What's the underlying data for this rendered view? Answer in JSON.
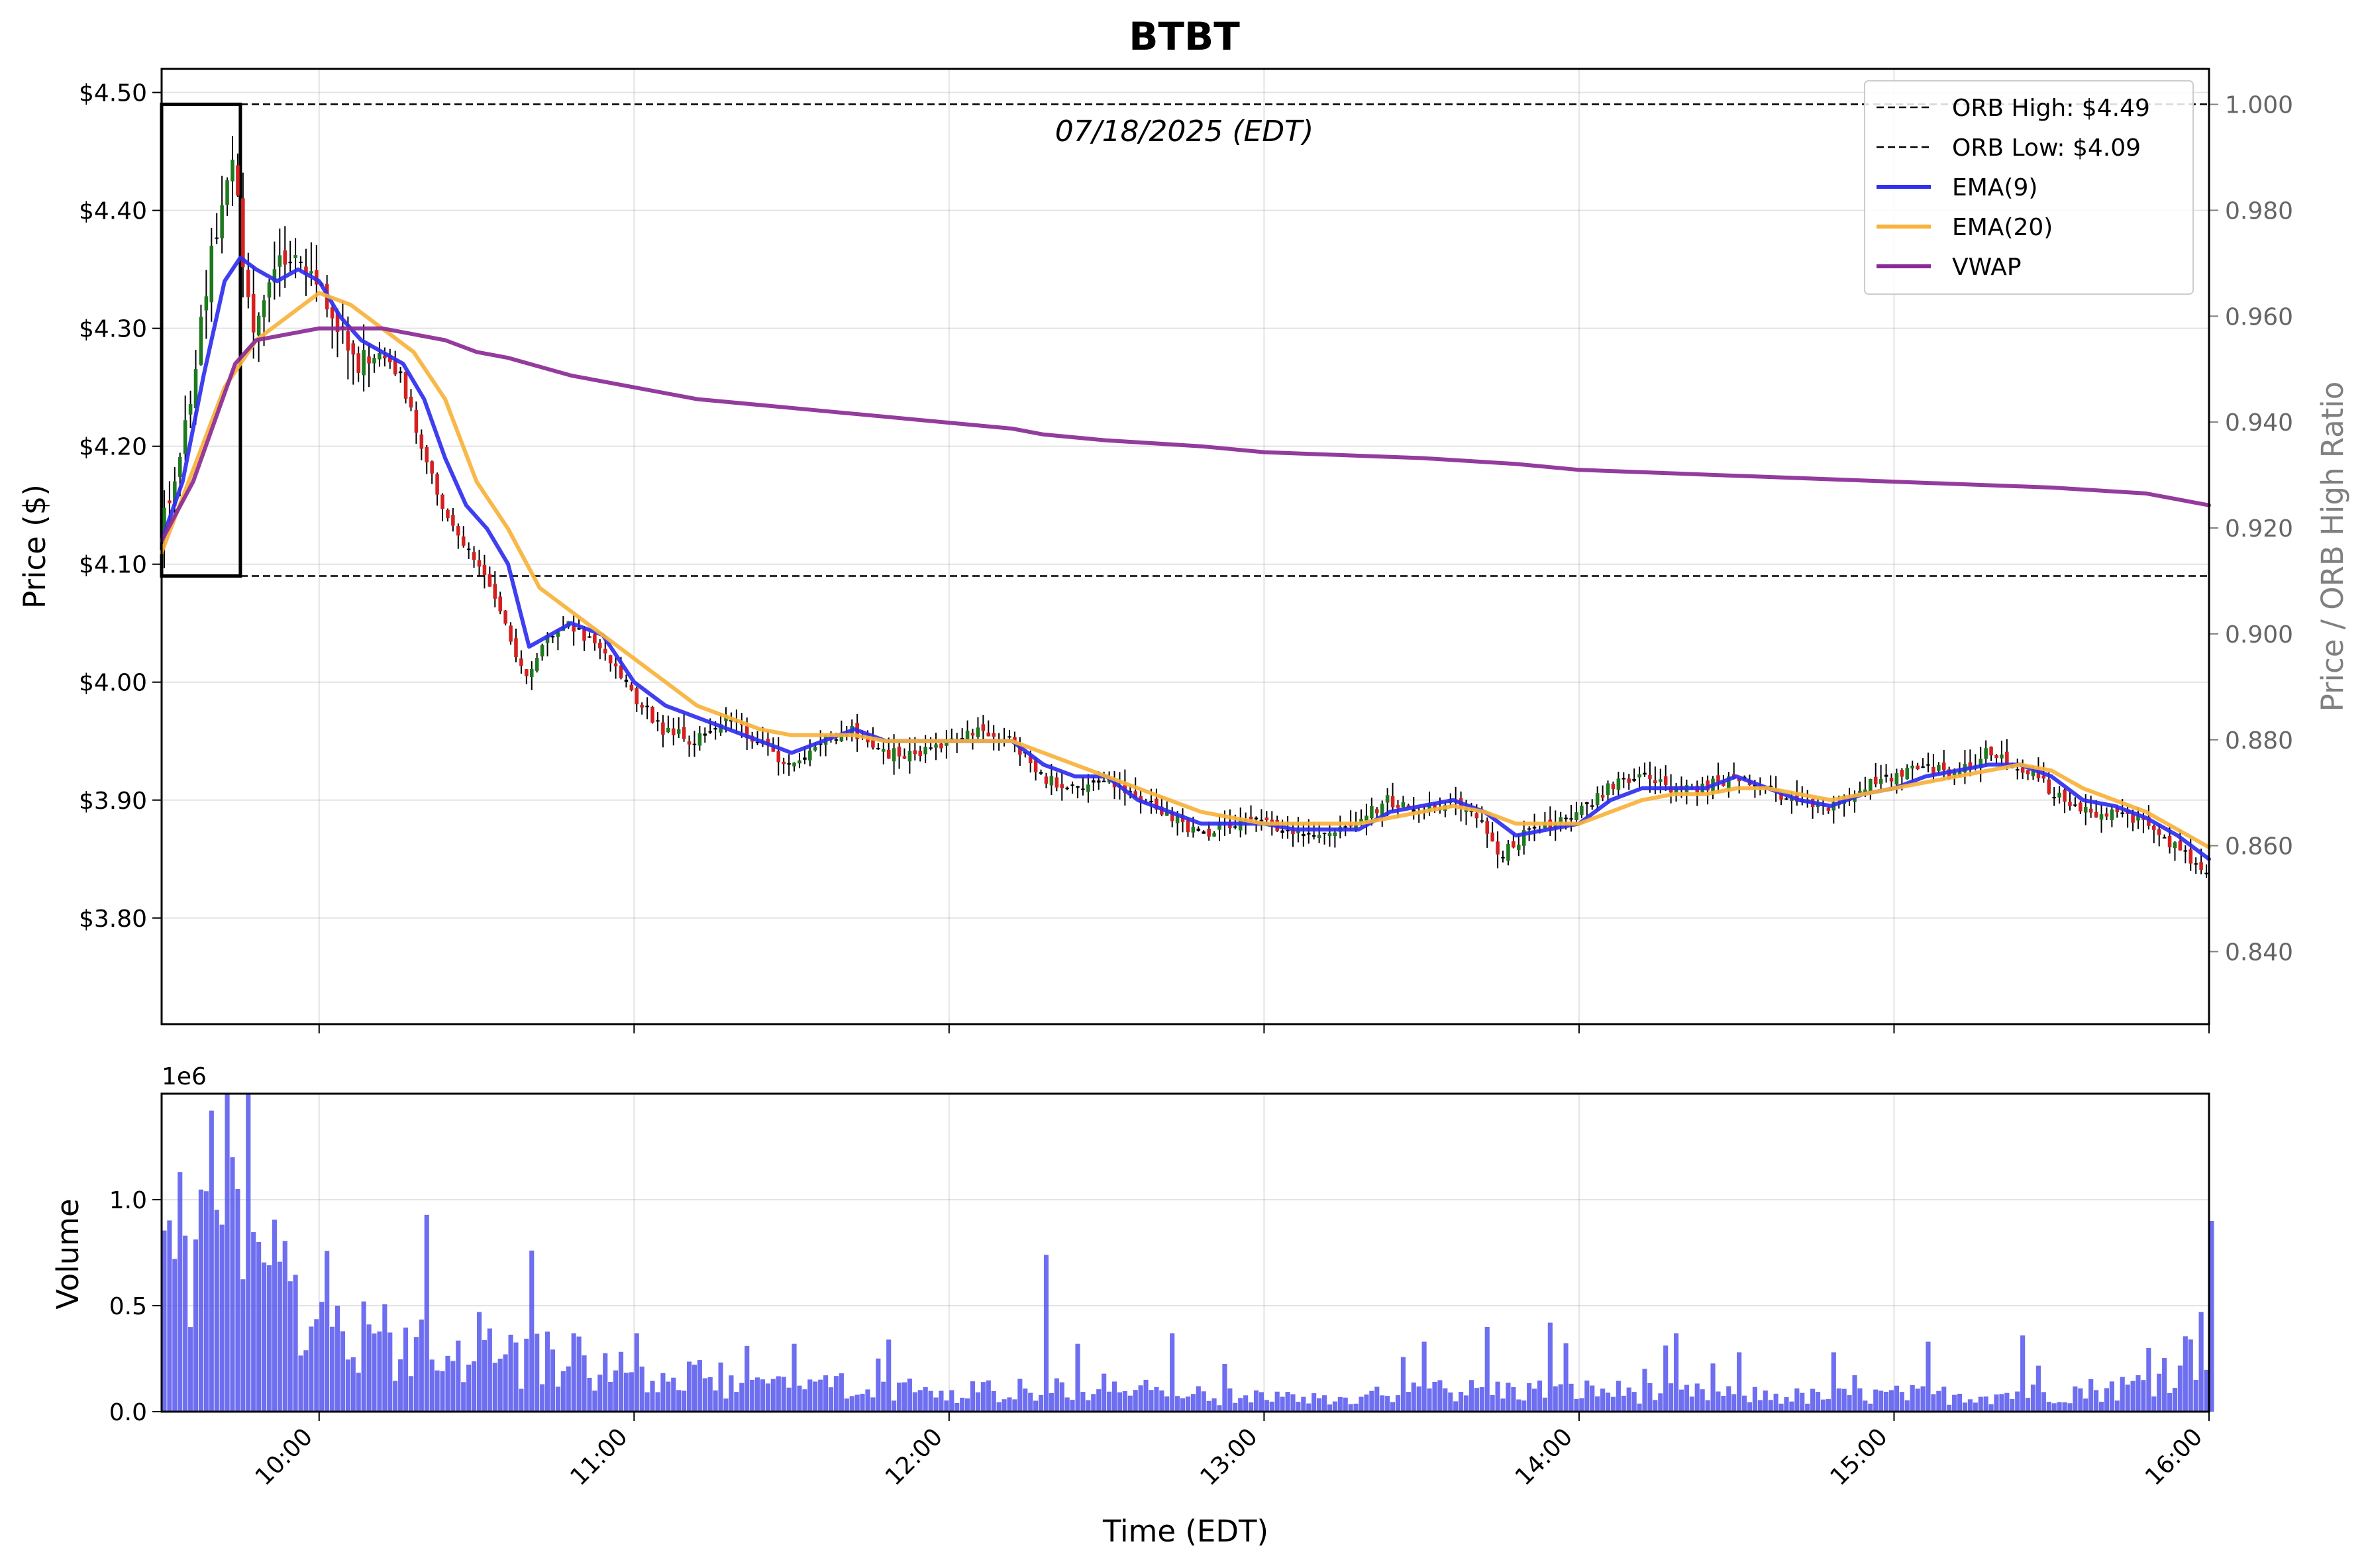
{
  "chart_data": {
    "type": "candlestick",
    "title": "BTBT",
    "subtitle": "07/18/2025 (EDT)",
    "xlabel": "Time (EDT)",
    "ylabel": "Price ($)",
    "y2label": "Price / ORB High Ratio",
    "volume_ylabel": "Volume",
    "volume_multiplier_label": "1e6",
    "x_range": [
      "09:30",
      "16:00"
    ],
    "x_ticks": [
      "10:00",
      "11:00",
      "12:00",
      "13:00",
      "14:00",
      "15:00",
      "16:00"
    ],
    "ylim": [
      3.71,
      4.52
    ],
    "y_ticks": [
      "$3.80",
      "$3.90",
      "$4.00",
      "$4.10",
      "$4.20",
      "$4.30",
      "$4.40",
      "$4.50"
    ],
    "y2lim": [
      0.8263,
      1.0067
    ],
    "y2_ticks": [
      "0.840",
      "0.860",
      "0.880",
      "0.900",
      "0.920",
      "0.940",
      "0.960",
      "0.980",
      "1.000"
    ],
    "volume_ylim": [
      0,
      1.5
    ],
    "volume_ticks": [
      "0.0",
      "0.5",
      "1.0"
    ],
    "grid": true,
    "legend_position": "top-right",
    "orb": {
      "high": 4.49,
      "low": 4.09,
      "start": "09:30",
      "end": "09:45"
    },
    "legend": [
      {
        "label": "ORB High: $4.49",
        "style": "dashed",
        "color": "#000000"
      },
      {
        "label": "ORB Low: $4.09",
        "style": "dashed",
        "color": "#000000"
      },
      {
        "label": "EMA(9)",
        "style": "solid",
        "color": "#2f2ff0"
      },
      {
        "label": "EMA(20)",
        "style": "solid",
        "color": "#f7b23b"
      },
      {
        "label": "VWAP",
        "style": "solid",
        "color": "#8b2a96"
      }
    ],
    "colors": {
      "up": "#1e7a1e",
      "down": "#d62020",
      "neutral": "#000000",
      "volume": "#5555ee"
    },
    "price_path": [
      [
        "09:30",
        4.12
      ],
      [
        "09:33",
        4.18
      ],
      [
        "09:36",
        4.24
      ],
      [
        "09:38",
        4.3
      ],
      [
        "09:40",
        4.36
      ],
      [
        "09:42",
        4.4
      ],
      [
        "09:44",
        4.45
      ],
      [
        "09:46",
        4.36
      ],
      [
        "09:48",
        4.3
      ],
      [
        "09:50",
        4.33
      ],
      [
        "09:54",
        4.36
      ],
      [
        "10:00",
        4.34
      ],
      [
        "10:04",
        4.3
      ],
      [
        "10:08",
        4.27
      ],
      [
        "10:12",
        4.28
      ],
      [
        "10:16",
        4.26
      ],
      [
        "10:20",
        4.2
      ],
      [
        "10:24",
        4.15
      ],
      [
        "10:28",
        4.12
      ],
      [
        "10:32",
        4.09
      ],
      [
        "10:36",
        4.05
      ],
      [
        "10:40",
        4.0
      ],
      [
        "10:44",
        4.04
      ],
      [
        "10:48",
        4.05
      ],
      [
        "10:54",
        4.03
      ],
      [
        "11:00",
        3.99
      ],
      [
        "11:06",
        3.96
      ],
      [
        "11:12",
        3.95
      ],
      [
        "11:18",
        3.97
      ],
      [
        "11:24",
        3.95
      ],
      [
        "11:30",
        3.93
      ],
      [
        "11:36",
        3.95
      ],
      [
        "11:42",
        3.96
      ],
      [
        "11:48",
        3.94
      ],
      [
        "11:54",
        3.94
      ],
      [
        "12:00",
        3.95
      ],
      [
        "12:06",
        3.96
      ],
      [
        "12:12",
        3.95
      ],
      [
        "12:18",
        3.92
      ],
      [
        "12:24",
        3.91
      ],
      [
        "12:30",
        3.92
      ],
      [
        "12:36",
        3.9
      ],
      [
        "12:42",
        3.89
      ],
      [
        "12:48",
        3.87
      ],
      [
        "12:54",
        3.88
      ],
      [
        "13:00",
        3.88
      ],
      [
        "13:06",
        3.87
      ],
      [
        "13:12",
        3.87
      ],
      [
        "13:18",
        3.88
      ],
      [
        "13:24",
        3.9
      ],
      [
        "13:30",
        3.89
      ],
      [
        "13:36",
        3.9
      ],
      [
        "13:42",
        3.88
      ],
      [
        "13:45",
        3.85
      ],
      [
        "13:50",
        3.87
      ],
      [
        "13:56",
        3.88
      ],
      [
        "14:00",
        3.89
      ],
      [
        "14:06",
        3.91
      ],
      [
        "14:12",
        3.92
      ],
      [
        "14:18",
        3.91
      ],
      [
        "14:24",
        3.91
      ],
      [
        "14:30",
        3.92
      ],
      [
        "14:36",
        3.91
      ],
      [
        "14:42",
        3.9
      ],
      [
        "14:48",
        3.89
      ],
      [
        "14:54",
        3.91
      ],
      [
        "15:00",
        3.92
      ],
      [
        "15:06",
        3.93
      ],
      [
        "15:12",
        3.92
      ],
      [
        "15:18",
        3.94
      ],
      [
        "15:24",
        3.93
      ],
      [
        "15:30",
        3.91
      ],
      [
        "15:36",
        3.89
      ],
      [
        "15:42",
        3.89
      ],
      [
        "15:48",
        3.88
      ],
      [
        "15:54",
        3.86
      ],
      [
        "16:00",
        3.84
      ]
    ],
    "series": [
      {
        "name": "EMA(9)",
        "points": [
          [
            "09:30",
            4.12
          ],
          [
            "09:34",
            4.17
          ],
          [
            "09:38",
            4.26
          ],
          [
            "09:42",
            4.34
          ],
          [
            "09:45",
            4.36
          ],
          [
            "09:48",
            4.35
          ],
          [
            "09:52",
            4.34
          ],
          [
            "09:56",
            4.35
          ],
          [
            "10:00",
            4.34
          ],
          [
            "10:04",
            4.31
          ],
          [
            "10:08",
            4.29
          ],
          [
            "10:12",
            4.28
          ],
          [
            "10:16",
            4.27
          ],
          [
            "10:20",
            4.24
          ],
          [
            "10:24",
            4.19
          ],
          [
            "10:28",
            4.15
          ],
          [
            "10:32",
            4.13
          ],
          [
            "10:36",
            4.1
          ],
          [
            "10:40",
            4.03
          ],
          [
            "10:44",
            4.04
          ],
          [
            "10:48",
            4.05
          ],
          [
            "10:54",
            4.04
          ],
          [
            "11:00",
            4.0
          ],
          [
            "11:06",
            3.98
          ],
          [
            "11:12",
            3.97
          ],
          [
            "11:18",
            3.96
          ],
          [
            "11:24",
            3.95
          ],
          [
            "11:30",
            3.94
          ],
          [
            "11:36",
            3.95
          ],
          [
            "11:42",
            3.96
          ],
          [
            "11:48",
            3.95
          ],
          [
            "11:54",
            3.95
          ],
          [
            "12:00",
            3.95
          ],
          [
            "12:06",
            3.95
          ],
          [
            "12:12",
            3.95
          ],
          [
            "12:18",
            3.93
          ],
          [
            "12:24",
            3.92
          ],
          [
            "12:30",
            3.92
          ],
          [
            "12:36",
            3.9
          ],
          [
            "12:42",
            3.89
          ],
          [
            "12:48",
            3.88
          ],
          [
            "12:54",
            3.88
          ],
          [
            "13:00",
            3.88
          ],
          [
            "13:06",
            3.875
          ],
          [
            "13:12",
            3.875
          ],
          [
            "13:18",
            3.875
          ],
          [
            "13:24",
            3.89
          ],
          [
            "13:30",
            3.895
          ],
          [
            "13:36",
            3.9
          ],
          [
            "13:42",
            3.89
          ],
          [
            "13:48",
            3.87
          ],
          [
            "13:54",
            3.875
          ],
          [
            "14:00",
            3.88
          ],
          [
            "14:06",
            3.9
          ],
          [
            "14:12",
            3.91
          ],
          [
            "14:18",
            3.91
          ],
          [
            "14:24",
            3.91
          ],
          [
            "14:30",
            3.92
          ],
          [
            "14:36",
            3.91
          ],
          [
            "14:42",
            3.9
          ],
          [
            "14:48",
            3.895
          ],
          [
            "14:54",
            3.905
          ],
          [
            "15:00",
            3.91
          ],
          [
            "15:06",
            3.92
          ],
          [
            "15:12",
            3.925
          ],
          [
            "15:18",
            3.93
          ],
          [
            "15:24",
            3.93
          ],
          [
            "15:30",
            3.92
          ],
          [
            "15:36",
            3.9
          ],
          [
            "15:42",
            3.895
          ],
          [
            "15:48",
            3.885
          ],
          [
            "15:54",
            3.87
          ],
          [
            "16:00",
            3.85
          ]
        ]
      },
      {
        "name": "EMA(20)",
        "points": [
          [
            "09:30",
            4.11
          ],
          [
            "09:36",
            4.18
          ],
          [
            "09:42",
            4.25
          ],
          [
            "09:48",
            4.29
          ],
          [
            "09:54",
            4.31
          ],
          [
            "10:00",
            4.33
          ],
          [
            "10:06",
            4.32
          ],
          [
            "10:12",
            4.3
          ],
          [
            "10:18",
            4.28
          ],
          [
            "10:24",
            4.24
          ],
          [
            "10:30",
            4.17
          ],
          [
            "10:36",
            4.13
          ],
          [
            "10:42",
            4.08
          ],
          [
            "10:48",
            4.06
          ],
          [
            "10:54",
            4.04
          ],
          [
            "11:00",
            4.02
          ],
          [
            "11:06",
            4.0
          ],
          [
            "11:12",
            3.98
          ],
          [
            "11:18",
            3.97
          ],
          [
            "11:24",
            3.96
          ],
          [
            "11:30",
            3.955
          ],
          [
            "11:36",
            3.955
          ],
          [
            "11:42",
            3.955
          ],
          [
            "11:48",
            3.95
          ],
          [
            "11:54",
            3.95
          ],
          [
            "12:00",
            3.95
          ],
          [
            "12:06",
            3.95
          ],
          [
            "12:12",
            3.95
          ],
          [
            "12:18",
            3.94
          ],
          [
            "12:24",
            3.93
          ],
          [
            "12:30",
            3.92
          ],
          [
            "12:36",
            3.91
          ],
          [
            "12:42",
            3.9
          ],
          [
            "12:48",
            3.89
          ],
          [
            "12:54",
            3.885
          ],
          [
            "13:00",
            3.88
          ],
          [
            "13:06",
            3.88
          ],
          [
            "13:12",
            3.88
          ],
          [
            "13:18",
            3.88
          ],
          [
            "13:24",
            3.885
          ],
          [
            "13:30",
            3.89
          ],
          [
            "13:36",
            3.895
          ],
          [
            "13:42",
            3.89
          ],
          [
            "13:48",
            3.88
          ],
          [
            "13:54",
            3.88
          ],
          [
            "14:00",
            3.88
          ],
          [
            "14:06",
            3.89
          ],
          [
            "14:12",
            3.9
          ],
          [
            "14:18",
            3.905
          ],
          [
            "14:24",
            3.905
          ],
          [
            "14:30",
            3.91
          ],
          [
            "14:36",
            3.91
          ],
          [
            "14:42",
            3.905
          ],
          [
            "14:48",
            3.9
          ],
          [
            "14:54",
            3.905
          ],
          [
            "15:00",
            3.91
          ],
          [
            "15:06",
            3.915
          ],
          [
            "15:12",
            3.92
          ],
          [
            "15:18",
            3.925
          ],
          [
            "15:24",
            3.93
          ],
          [
            "15:30",
            3.925
          ],
          [
            "15:36",
            3.91
          ],
          [
            "15:42",
            3.9
          ],
          [
            "15:48",
            3.89
          ],
          [
            "15:54",
            3.875
          ],
          [
            "16:00",
            3.86
          ]
        ]
      },
      {
        "name": "VWAP",
        "points": [
          [
            "09:30",
            4.12
          ],
          [
            "09:36",
            4.17
          ],
          [
            "09:40",
            4.22
          ],
          [
            "09:44",
            4.27
          ],
          [
            "09:48",
            4.29
          ],
          [
            "09:54",
            4.295
          ],
          [
            "10:00",
            4.3
          ],
          [
            "10:06",
            4.3
          ],
          [
            "10:12",
            4.3
          ],
          [
            "10:18",
            4.295
          ],
          [
            "10:24",
            4.29
          ],
          [
            "10:30",
            4.28
          ],
          [
            "10:36",
            4.275
          ],
          [
            "10:40",
            4.27
          ],
          [
            "10:48",
            4.26
          ],
          [
            "11:00",
            4.25
          ],
          [
            "11:12",
            4.24
          ],
          [
            "11:24",
            4.235
          ],
          [
            "11:36",
            4.23
          ],
          [
            "11:48",
            4.225
          ],
          [
            "12:00",
            4.22
          ],
          [
            "12:12",
            4.215
          ],
          [
            "12:18",
            4.21
          ],
          [
            "12:30",
            4.205
          ],
          [
            "12:48",
            4.2
          ],
          [
            "13:00",
            4.195
          ],
          [
            "13:30",
            4.19
          ],
          [
            "13:48",
            4.185
          ],
          [
            "14:00",
            4.18
          ],
          [
            "14:30",
            4.175
          ],
          [
            "15:00",
            4.17
          ],
          [
            "15:30",
            4.165
          ],
          [
            "15:48",
            4.16
          ],
          [
            "16:00",
            4.15
          ]
        ]
      }
    ],
    "volume_profile": [
      [
        "09:30",
        0.6
      ],
      [
        "09:35",
        0.8
      ],
      [
        "09:38",
        1.35
      ],
      [
        "09:41",
        1.05
      ],
      [
        "09:44",
        1.05
      ],
      [
        "09:47",
        0.8
      ],
      [
        "09:50",
        0.65
      ],
      [
        "09:55",
        0.5
      ],
      [
        "10:00",
        0.35
      ],
      [
        "10:10",
        0.3
      ],
      [
        "10:20",
        0.28
      ],
      [
        "10:30",
        0.25
      ],
      [
        "10:40",
        0.25
      ],
      [
        "10:50",
        0.22
      ],
      [
        "11:00",
        0.17
      ],
      [
        "11:15",
        0.15
      ],
      [
        "11:30",
        0.13
      ],
      [
        "11:45",
        0.12
      ],
      [
        "12:00",
        0.1
      ],
      [
        "12:15",
        0.1
      ],
      [
        "12:30",
        0.1
      ],
      [
        "12:45",
        0.08
      ],
      [
        "13:00",
        0.06
      ],
      [
        "13:15",
        0.06
      ],
      [
        "13:30",
        0.1
      ],
      [
        "13:45",
        0.1
      ],
      [
        "14:00",
        0.1
      ],
      [
        "14:15",
        0.09
      ],
      [
        "14:30",
        0.08
      ],
      [
        "14:45",
        0.07
      ],
      [
        "15:00",
        0.08
      ],
      [
        "15:15",
        0.08
      ],
      [
        "15:30",
        0.09
      ],
      [
        "15:45",
        0.12
      ],
      [
        "15:55",
        0.25
      ],
      [
        "16:00",
        0.4
      ]
    ],
    "volume_spikes": [
      [
        "09:39",
        1.42
      ],
      [
        "09:43",
        1.2
      ],
      [
        "09:44",
        1.05
      ],
      [
        "09:48",
        0.8
      ],
      [
        "10:03",
        0.5
      ],
      [
        "10:30",
        0.47
      ],
      [
        "10:40",
        0.76
      ],
      [
        "10:48",
        0.37
      ],
      [
        "11:00",
        0.37
      ],
      [
        "11:30",
        0.32
      ],
      [
        "11:48",
        0.34
      ],
      [
        "12:18",
        0.74
      ],
      [
        "12:24",
        0.32
      ],
      [
        "12:42",
        0.37
      ],
      [
        "13:30",
        0.33
      ],
      [
        "13:42",
        0.4
      ],
      [
        "13:54",
        0.42
      ],
      [
        "14:18",
        0.37
      ],
      [
        "14:30",
        0.28
      ],
      [
        "14:48",
        0.28
      ],
      [
        "15:06",
        0.33
      ],
      [
        "15:24",
        0.36
      ],
      [
        "15:48",
        0.3
      ],
      [
        "15:58",
        0.47
      ],
      [
        "16:00",
        0.9
      ]
    ]
  }
}
